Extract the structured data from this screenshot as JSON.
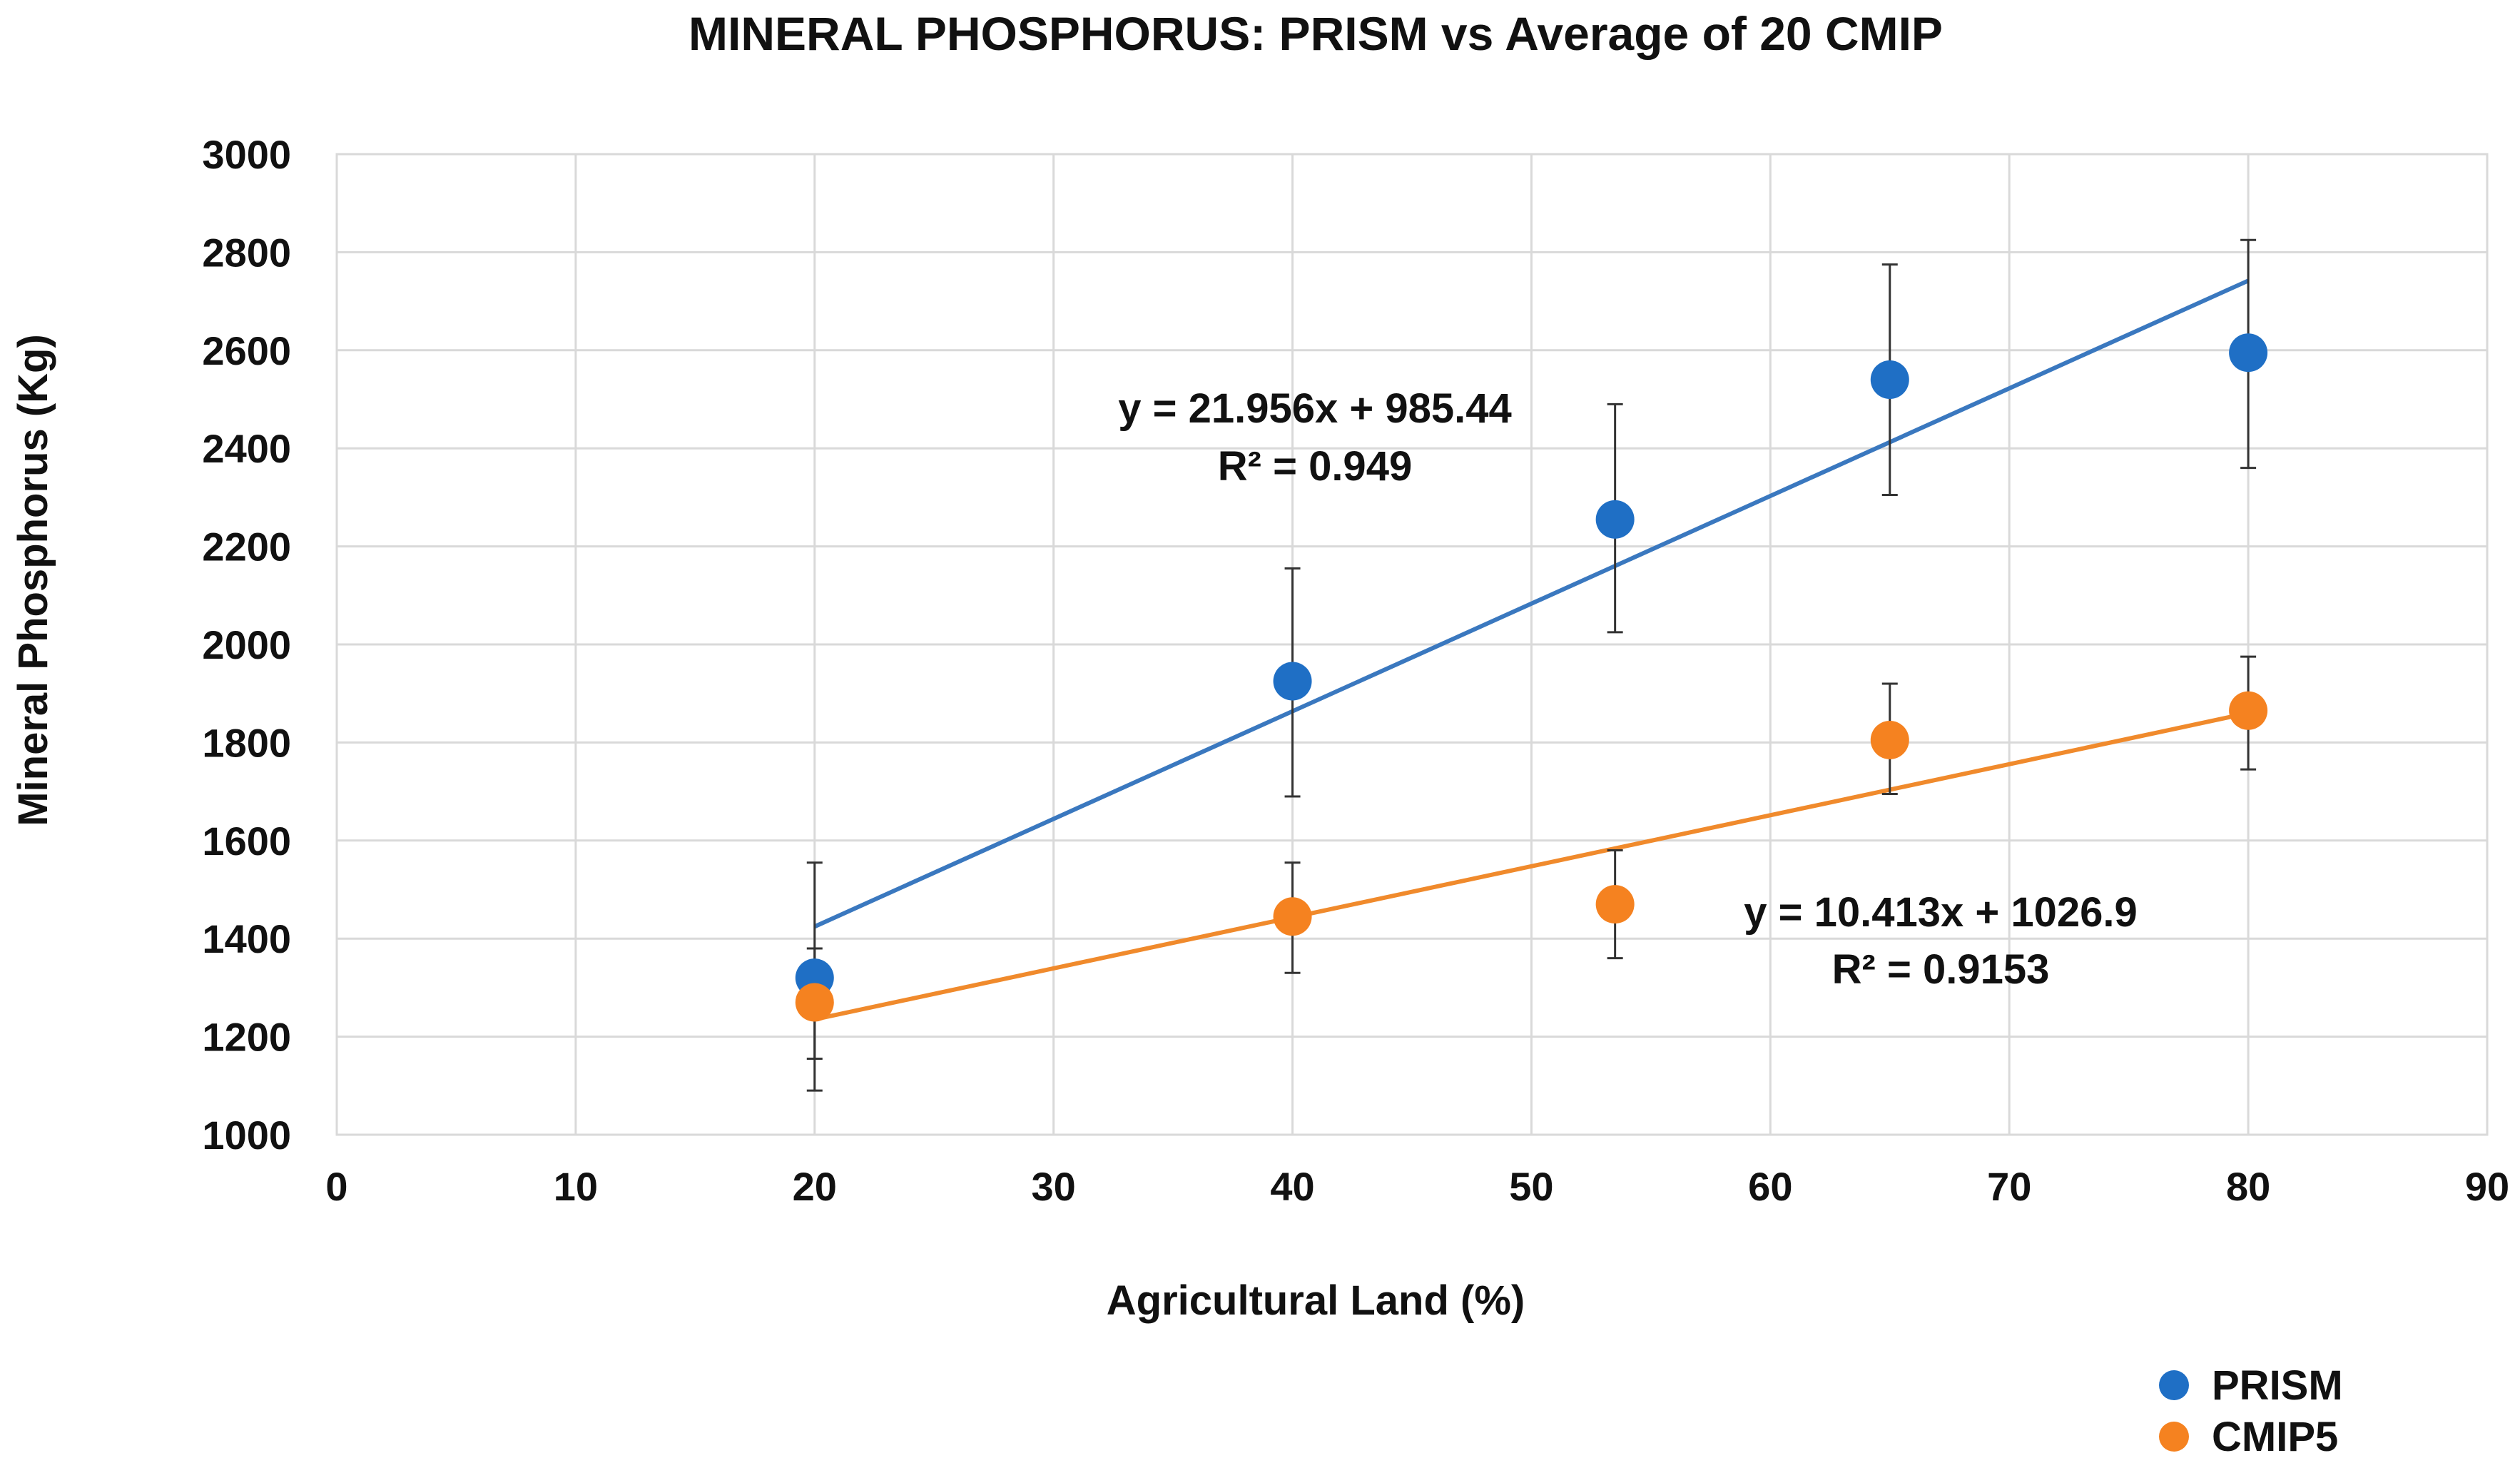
{
  "chart_data": {
    "type": "scatter",
    "title": "MINERAL PHOSPHORUS: PRISM vs Average of 20 CMIP",
    "xlabel": "Agricultural Land (%)",
    "ylabel": "Mineral Phosphorus (Kg)",
    "xlim": [
      0,
      90
    ],
    "ylim": [
      1000,
      3000
    ],
    "x_ticks": [
      0,
      10,
      20,
      30,
      40,
      50,
      60,
      70,
      80,
      90
    ],
    "y_ticks": [
      1000,
      1200,
      1400,
      1600,
      1800,
      2000,
      2200,
      2400,
      2600,
      2800,
      3000
    ],
    "grid": true,
    "legend_position": "bottom-right",
    "series": [
      {
        "name": "PRISM",
        "color": "#1f6fc5",
        "trend_color": "#3a78bf",
        "points": [
          {
            "x": 20,
            "y": 1320,
            "err_low": 1155,
            "err_high": 1555
          },
          {
            "x": 40,
            "y": 1925,
            "err_low": 1690,
            "err_high": 2155
          },
          {
            "x": 53.5,
            "y": 2255,
            "err_low": 2025,
            "err_high": 2490
          },
          {
            "x": 65,
            "y": 2540,
            "err_low": 2305,
            "err_high": 2775
          },
          {
            "x": 80,
            "y": 2595,
            "err_low": 2360,
            "err_high": 2825
          }
        ],
        "trendline": {
          "slope": 21.956,
          "intercept": 985.44,
          "x_range": [
            20,
            80
          ]
        },
        "equation": "y = 21.956x + 985.44",
        "r_squared": "R² = 0.949"
      },
      {
        "name": "CMIP5",
        "color": "#f58220",
        "trend_color": "#f08a2c",
        "points": [
          {
            "x": 20,
            "y": 1270,
            "err_low": 1090,
            "err_high": 1380
          },
          {
            "x": 40,
            "y": 1445,
            "err_low": 1330,
            "err_high": 1555
          },
          {
            "x": 53.5,
            "y": 1470,
            "err_low": 1360,
            "err_high": 1580
          },
          {
            "x": 65,
            "y": 1805,
            "err_low": 1695,
            "err_high": 1920
          },
          {
            "x": 80,
            "y": 1865,
            "err_low": 1745,
            "err_high": 1975
          }
        ],
        "trendline": {
          "slope": 10.413,
          "intercept": 1026.9,
          "x_range": [
            20,
            80
          ]
        },
        "equation": "y = 10.413x + 1026.9",
        "r_squared": "R² = 0.9153"
      }
    ]
  }
}
